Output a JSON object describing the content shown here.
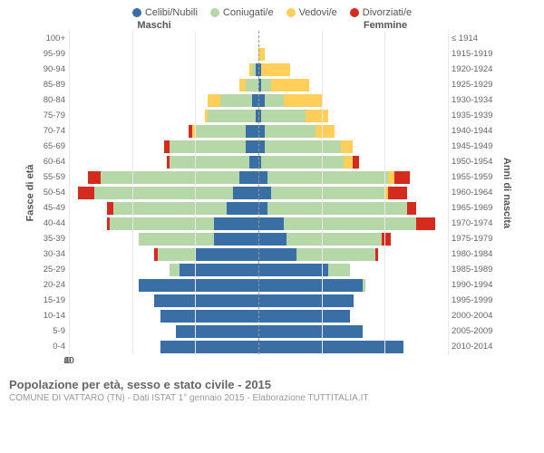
{
  "colors": {
    "celibi": "#3a6fa6",
    "coniugati": "#b6d7a8",
    "vedovi": "#ffcf5a",
    "divorziati": "#d52b1e",
    "grid": "#e8e8e8",
    "center": "#999"
  },
  "legend": [
    {
      "key": "celibi",
      "label": "Celibi/Nubili"
    },
    {
      "key": "coniugati",
      "label": "Coniugati/e"
    },
    {
      "key": "vedovi",
      "label": "Vedovi/e"
    },
    {
      "key": "divorziati",
      "label": "Divorziati/e"
    }
  ],
  "header_left": "Maschi",
  "header_right": "Femmine",
  "ylabel_left": "Fasce di età",
  "ylabel_right": "Anni di nascita",
  "xmax": 60,
  "xticks": [
    60,
    40,
    20,
    0,
    20,
    40,
    60
  ],
  "footer_title": "Popolazione per età, sesso e stato civile - 2015",
  "footer_sub": "COMUNE DI VATTARO (TN) - Dati ISTAT 1° gennaio 2015 - Elaborazione TUTTITALIA.IT",
  "rows": [
    {
      "age": "100+",
      "birth": "≤ 1914",
      "m": {
        "c": 0,
        "co": 0,
        "v": 0,
        "d": 0
      },
      "f": {
        "c": 0,
        "co": 0,
        "v": 0,
        "d": 0
      }
    },
    {
      "age": "95-99",
      "birth": "1915-1919",
      "m": {
        "c": 0,
        "co": 0,
        "v": 0,
        "d": 0
      },
      "f": {
        "c": 0,
        "co": 0,
        "v": 2,
        "d": 0
      }
    },
    {
      "age": "90-94",
      "birth": "1920-1924",
      "m": {
        "c": 1,
        "co": 1,
        "v": 1,
        "d": 0
      },
      "f": {
        "c": 1,
        "co": 0,
        "v": 9,
        "d": 0
      }
    },
    {
      "age": "85-89",
      "birth": "1925-1929",
      "m": {
        "c": 0,
        "co": 4,
        "v": 2,
        "d": 0
      },
      "f": {
        "c": 1,
        "co": 3,
        "v": 12,
        "d": 0
      }
    },
    {
      "age": "80-84",
      "birth": "1930-1934",
      "m": {
        "c": 2,
        "co": 10,
        "v": 4,
        "d": 0
      },
      "f": {
        "c": 2,
        "co": 6,
        "v": 12,
        "d": 0
      }
    },
    {
      "age": "75-79",
      "birth": "1935-1939",
      "m": {
        "c": 1,
        "co": 15,
        "v": 1,
        "d": 0
      },
      "f": {
        "c": 1,
        "co": 14,
        "v": 7,
        "d": 0
      }
    },
    {
      "age": "70-74",
      "birth": "1940-1944",
      "m": {
        "c": 4,
        "co": 16,
        "v": 1,
        "d": 1
      },
      "f": {
        "c": 2,
        "co": 16,
        "v": 6,
        "d": 0
      }
    },
    {
      "age": "65-69",
      "birth": "1945-1949",
      "m": {
        "c": 4,
        "co": 24,
        "v": 0,
        "d": 2
      },
      "f": {
        "c": 2,
        "co": 24,
        "v": 4,
        "d": 0
      }
    },
    {
      "age": "60-64",
      "birth": "1950-1954",
      "m": {
        "c": 3,
        "co": 25,
        "v": 0,
        "d": 1
      },
      "f": {
        "c": 1,
        "co": 26,
        "v": 3,
        "d": 2
      }
    },
    {
      "age": "55-59",
      "birth": "1955-1959",
      "m": {
        "c": 6,
        "co": 44,
        "v": 0,
        "d": 4
      },
      "f": {
        "c": 3,
        "co": 38,
        "v": 2,
        "d": 5
      }
    },
    {
      "age": "50-54",
      "birth": "1960-1964",
      "m": {
        "c": 8,
        "co": 44,
        "v": 0,
        "d": 5
      },
      "f": {
        "c": 4,
        "co": 36,
        "v": 1,
        "d": 6
      }
    },
    {
      "age": "45-49",
      "birth": "1965-1969",
      "m": {
        "c": 10,
        "co": 36,
        "v": 0,
        "d": 2
      },
      "f": {
        "c": 3,
        "co": 44,
        "v": 0,
        "d": 3
      }
    },
    {
      "age": "40-44",
      "birth": "1970-1974",
      "m": {
        "c": 14,
        "co": 33,
        "v": 0,
        "d": 1
      },
      "f": {
        "c": 8,
        "co": 42,
        "v": 0,
        "d": 6
      }
    },
    {
      "age": "35-39",
      "birth": "1975-1979",
      "m": {
        "c": 14,
        "co": 24,
        "v": 0,
        "d": 0
      },
      "f": {
        "c": 9,
        "co": 30,
        "v": 0,
        "d": 3
      }
    },
    {
      "age": "30-34",
      "birth": "1980-1984",
      "m": {
        "c": 20,
        "co": 12,
        "v": 0,
        "d": 1
      },
      "f": {
        "c": 12,
        "co": 25,
        "v": 0,
        "d": 1
      }
    },
    {
      "age": "25-29",
      "birth": "1985-1989",
      "m": {
        "c": 25,
        "co": 3,
        "v": 0,
        "d": 0
      },
      "f": {
        "c": 22,
        "co": 7,
        "v": 0,
        "d": 0
      }
    },
    {
      "age": "20-24",
      "birth": "1990-1994",
      "m": {
        "c": 38,
        "co": 0,
        "v": 0,
        "d": 0
      },
      "f": {
        "c": 33,
        "co": 1,
        "v": 0,
        "d": 0
      }
    },
    {
      "age": "15-19",
      "birth": "1995-1999",
      "m": {
        "c": 33,
        "co": 0,
        "v": 0,
        "d": 0
      },
      "f": {
        "c": 30,
        "co": 0,
        "v": 0,
        "d": 0
      }
    },
    {
      "age": "10-14",
      "birth": "2000-2004",
      "m": {
        "c": 31,
        "co": 0,
        "v": 0,
        "d": 0
      },
      "f": {
        "c": 29,
        "co": 0,
        "v": 0,
        "d": 0
      }
    },
    {
      "age": "5-9",
      "birth": "2005-2009",
      "m": {
        "c": 26,
        "co": 0,
        "v": 0,
        "d": 0
      },
      "f": {
        "c": 33,
        "co": 0,
        "v": 0,
        "d": 0
      }
    },
    {
      "age": "0-4",
      "birth": "2010-2014",
      "m": {
        "c": 31,
        "co": 0,
        "v": 0,
        "d": 0
      },
      "f": {
        "c": 46,
        "co": 0,
        "v": 0,
        "d": 0
      }
    }
  ]
}
